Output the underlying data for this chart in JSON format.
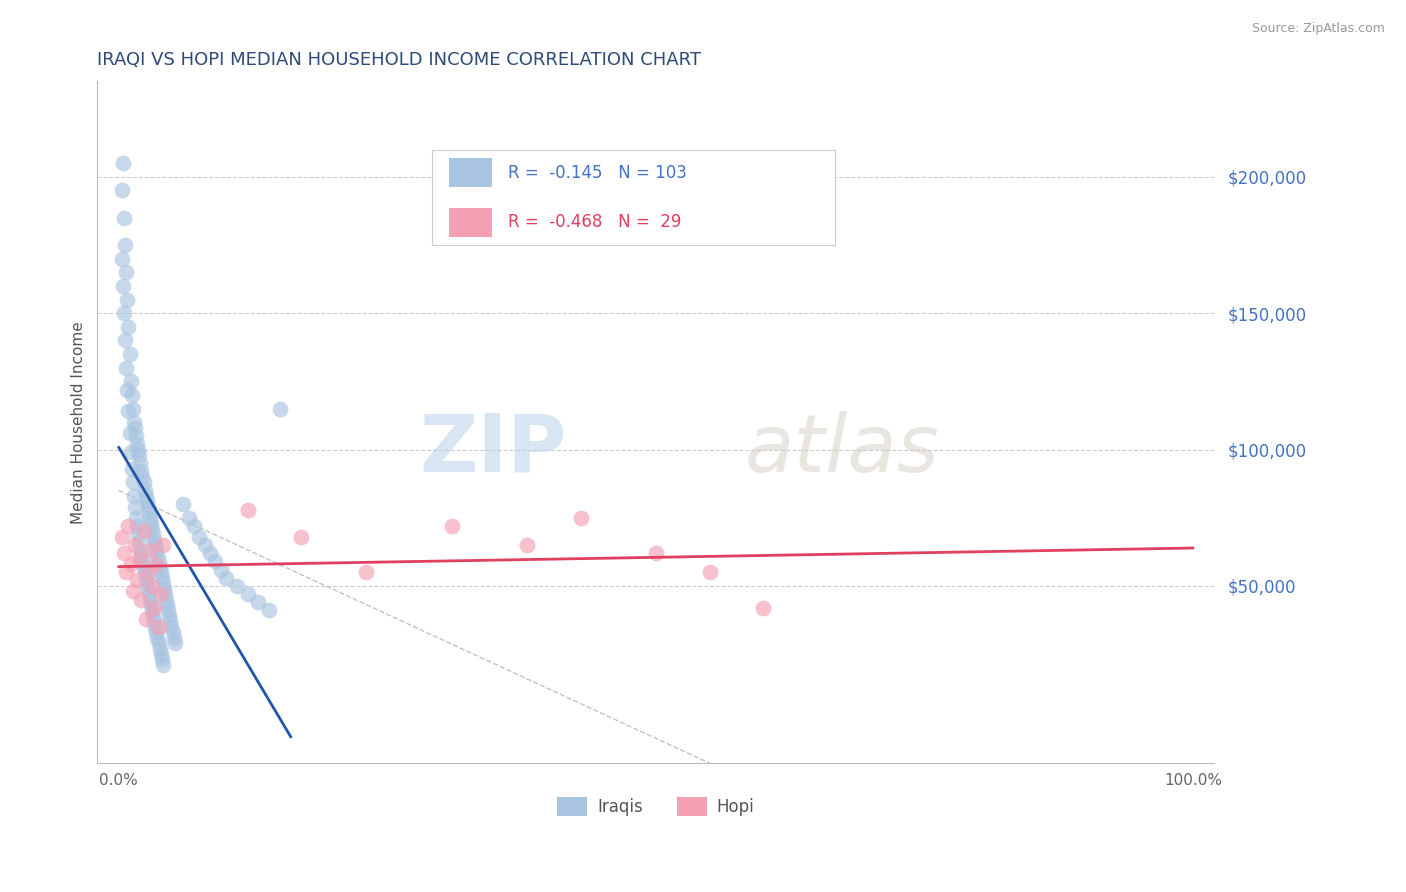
{
  "title": "IRAQI VS HOPI MEDIAN HOUSEHOLD INCOME CORRELATION CHART",
  "title_fontsize": 14,
  "title_color": "#2d4a7a",
  "source_text": "Source: ZipAtlas.com",
  "ylabel": "Median Household Income",
  "xlim": [
    -0.02,
    1.02
  ],
  "ylim": [
    -15000,
    235000
  ],
  "yticks": [
    50000,
    100000,
    150000,
    200000
  ],
  "ytick_labels": [
    "$50,000",
    "$100,000",
    "$150,000",
    "$200,000"
  ],
  "xtick_positions": [
    0.0,
    1.0
  ],
  "xtick_labels": [
    "0.0%",
    "100.0%"
  ],
  "r_iraqi": -0.145,
  "n_iraqi": 103,
  "r_hopi": -0.468,
  "n_hopi": 29,
  "iraqi_color": "#a8c4e0",
  "hopi_color": "#f4a0b5",
  "iraqi_line_color": "#2255aa",
  "hopi_line_color": "#e04060",
  "legend_label_iraqi": "Iraqis",
  "legend_label_hopi": "Hopi",
  "watermark_zip": "ZIP",
  "watermark_atlas": "atlas",
  "background_color": "#ffffff",
  "iraqi_x": [
    0.003,
    0.004,
    0.005,
    0.006,
    0.007,
    0.008,
    0.009,
    0.01,
    0.011,
    0.012,
    0.013,
    0.014,
    0.015,
    0.016,
    0.017,
    0.018,
    0.019,
    0.02,
    0.021,
    0.022,
    0.023,
    0.024,
    0.025,
    0.026,
    0.027,
    0.028,
    0.029,
    0.03,
    0.031,
    0.032,
    0.033,
    0.034,
    0.035,
    0.036,
    0.037,
    0.038,
    0.039,
    0.04,
    0.041,
    0.042,
    0.043,
    0.044,
    0.045,
    0.046,
    0.047,
    0.048,
    0.049,
    0.05,
    0.051,
    0.052,
    0.003,
    0.004,
    0.005,
    0.006,
    0.007,
    0.008,
    0.009,
    0.01,
    0.011,
    0.012,
    0.013,
    0.014,
    0.015,
    0.016,
    0.017,
    0.018,
    0.019,
    0.02,
    0.021,
    0.022,
    0.023,
    0.024,
    0.025,
    0.026,
    0.027,
    0.028,
    0.029,
    0.03,
    0.031,
    0.032,
    0.033,
    0.034,
    0.035,
    0.036,
    0.037,
    0.038,
    0.039,
    0.04,
    0.041,
    0.06,
    0.065,
    0.07,
    0.075,
    0.08,
    0.085,
    0.09,
    0.095,
    0.1,
    0.11,
    0.12,
    0.13,
    0.14,
    0.15
  ],
  "iraqi_y": [
    195000,
    205000,
    185000,
    175000,
    165000,
    155000,
    145000,
    135000,
    125000,
    120000,
    115000,
    110000,
    108000,
    105000,
    102000,
    100000,
    98000,
    95000,
    92000,
    90000,
    88000,
    85000,
    83000,
    81000,
    79000,
    77000,
    75000,
    73000,
    71000,
    69000,
    67000,
    65000,
    63000,
    61000,
    59000,
    57000,
    55000,
    53000,
    51000,
    49000,
    47000,
    45000,
    43000,
    41000,
    39000,
    37000,
    35000,
    33000,
    31000,
    29000,
    170000,
    160000,
    150000,
    140000,
    130000,
    122000,
    114000,
    106000,
    99000,
    93000,
    88000,
    83000,
    79000,
    75000,
    72000,
    69000,
    66000,
    63000,
    61000,
    59000,
    57000,
    55000,
    53000,
    51000,
    49000,
    47000,
    45000,
    43000,
    41000,
    39000,
    37000,
    35000,
    33000,
    31000,
    29000,
    27000,
    25000,
    23000,
    21000,
    80000,
    75000,
    72000,
    68000,
    65000,
    62000,
    59000,
    56000,
    53000,
    50000,
    47000,
    44000,
    41000,
    115000
  ],
  "hopi_x": [
    0.003,
    0.005,
    0.007,
    0.009,
    0.011,
    0.013,
    0.015,
    0.017,
    0.019,
    0.021,
    0.023,
    0.025,
    0.027,
    0.029,
    0.031,
    0.033,
    0.035,
    0.037,
    0.039,
    0.041,
    0.12,
    0.17,
    0.23,
    0.31,
    0.38,
    0.43,
    0.5,
    0.55,
    0.6
  ],
  "hopi_y": [
    68000,
    62000,
    55000,
    72000,
    58000,
    48000,
    65000,
    52000,
    60000,
    45000,
    70000,
    38000,
    55000,
    63000,
    50000,
    42000,
    58000,
    35000,
    47000,
    65000,
    78000,
    68000,
    55000,
    72000,
    65000,
    75000,
    62000,
    55000,
    42000
  ]
}
